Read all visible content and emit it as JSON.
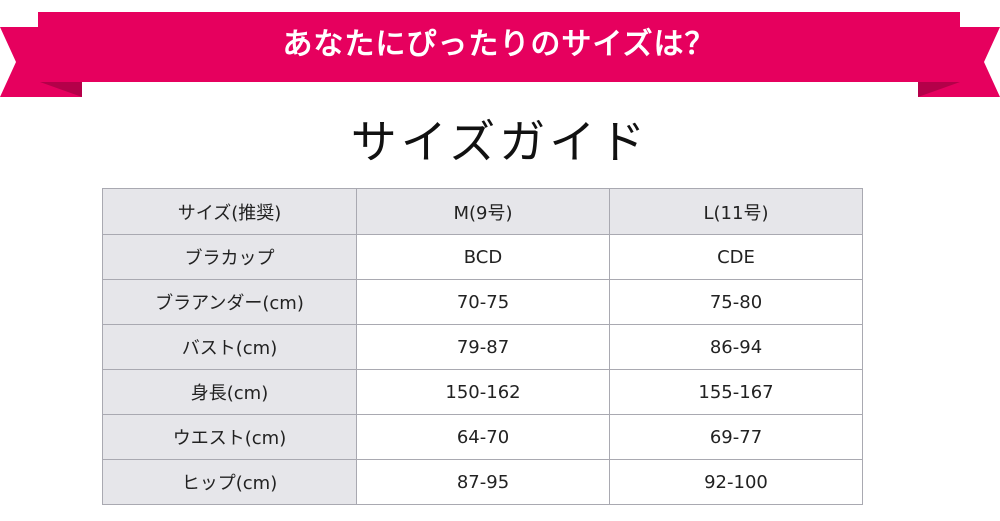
{
  "colors": {
    "ribbon": "#e6005e",
    "ribbon_fold": "#b40049",
    "header_bg": "#e6e6ea",
    "border": "#a9a9b1"
  },
  "banner": {
    "title": "あなたにぴったりのサイズは？"
  },
  "guide": {
    "title": "サイズガイド"
  },
  "table": {
    "headers": [
      "サイズ(推奨)",
      "M(9号)",
      "L(11号)"
    ],
    "rows": [
      {
        "label": "ブラカップ",
        "m": "BCD",
        "l": "CDE"
      },
      {
        "label": "ブラアンダー(cm)",
        "m": "70-75",
        "l": "75-80"
      },
      {
        "label": "バスト(cm)",
        "m": "79-87",
        "l": "86-94"
      },
      {
        "label": "身長(cm)",
        "m": "150-162",
        "l": "155-167"
      },
      {
        "label": "ウエスト(cm)",
        "m": "64-70",
        "l": "69-77"
      },
      {
        "label": "ヒップ(cm)",
        "m": "87-95",
        "l": "92-100"
      }
    ]
  }
}
